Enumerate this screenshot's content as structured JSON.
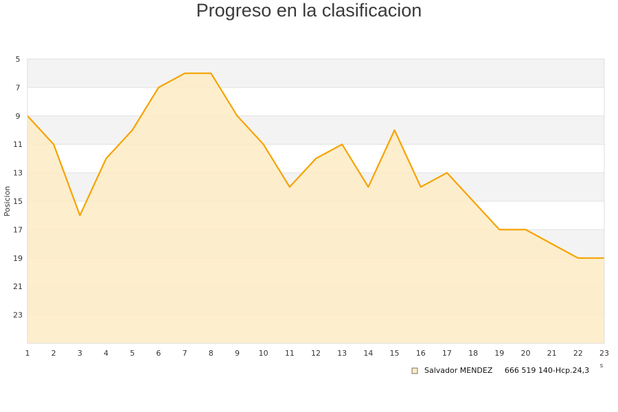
{
  "chart_data": {
    "type": "area",
    "title": "Progreso en la clasificacion",
    "ylabel": "Posicion",
    "xlabel": "",
    "x_unit_label": "s",
    "x": [
      1,
      2,
      3,
      4,
      5,
      6,
      7,
      8,
      9,
      10,
      11,
      12,
      13,
      14,
      15,
      16,
      17,
      18,
      19,
      20,
      21,
      22,
      23
    ],
    "series": [
      {
        "name": "Salvador MENDEZ     666 519 140-Hcp.24,3",
        "values": [
          9,
          11,
          16,
          12,
          10,
          7,
          6,
          6,
          9,
          11,
          14,
          12,
          11,
          14,
          10,
          14,
          13,
          15,
          17,
          17,
          18,
          19,
          19
        ]
      }
    ],
    "ylim": [
      25,
      5
    ],
    "y_inverted": true,
    "y_ticks": [
      5,
      7,
      9,
      11,
      13,
      15,
      17,
      19,
      21,
      23
    ],
    "grid": true,
    "legend_position": "bottom-right",
    "colors": {
      "line": "#f5a300",
      "fill": "#fdebc4",
      "band": "#f3f3f3"
    }
  }
}
